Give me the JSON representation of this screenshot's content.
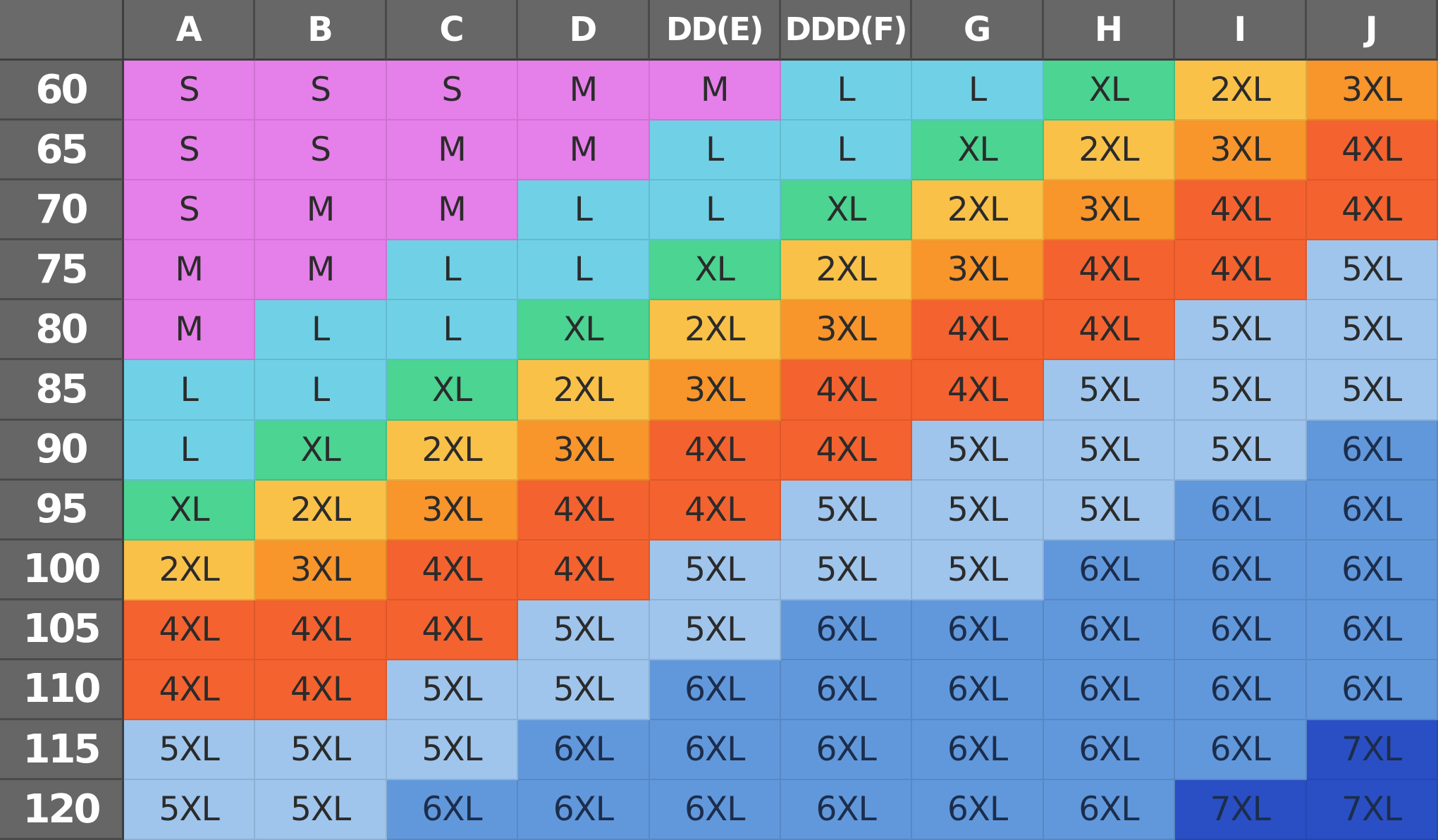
{
  "table": {
    "corner": "",
    "columns": [
      "A",
      "B",
      "C",
      "D",
      "DD(E)",
      "DDD(F)",
      "G",
      "H",
      "I",
      "J"
    ],
    "rows": [
      {
        "band": "60",
        "sizes": [
          "S",
          "S",
          "S",
          "M",
          "M",
          "L",
          "L",
          "XL",
          "2XL",
          "3XL"
        ]
      },
      {
        "band": "65",
        "sizes": [
          "S",
          "S",
          "M",
          "M",
          "L",
          "L",
          "XL",
          "2XL",
          "3XL",
          "4XL"
        ]
      },
      {
        "band": "70",
        "sizes": [
          "S",
          "M",
          "M",
          "L",
          "L",
          "XL",
          "2XL",
          "3XL",
          "4XL",
          "4XL"
        ]
      },
      {
        "band": "75",
        "sizes": [
          "M",
          "M",
          "L",
          "L",
          "XL",
          "2XL",
          "3XL",
          "4XL",
          "4XL",
          "5XL"
        ]
      },
      {
        "band": "80",
        "sizes": [
          "M",
          "L",
          "L",
          "XL",
          "2XL",
          "3XL",
          "4XL",
          "4XL",
          "5XL",
          "5XL"
        ]
      },
      {
        "band": "85",
        "sizes": [
          "L",
          "L",
          "XL",
          "2XL",
          "3XL",
          "4XL",
          "4XL",
          "5XL",
          "5XL",
          "5XL"
        ]
      },
      {
        "band": "90",
        "sizes": [
          "L",
          "XL",
          "2XL",
          "3XL",
          "4XL",
          "4XL",
          "5XL",
          "5XL",
          "5XL",
          "6XL"
        ]
      },
      {
        "band": "95",
        "sizes": [
          "XL",
          "2XL",
          "3XL",
          "4XL",
          "4XL",
          "5XL",
          "5XL",
          "5XL",
          "6XL",
          "6XL"
        ]
      },
      {
        "band": "100",
        "sizes": [
          "2XL",
          "3XL",
          "4XL",
          "4XL",
          "5XL",
          "5XL",
          "5XL",
          "6XL",
          "6XL",
          "6XL"
        ]
      },
      {
        "band": "105",
        "sizes": [
          "4XL",
          "4XL",
          "4XL",
          "5XL",
          "5XL",
          "6XL",
          "6XL",
          "6XL",
          "6XL",
          "6XL"
        ]
      },
      {
        "band": "110",
        "sizes": [
          "4XL",
          "4XL",
          "5XL",
          "5XL",
          "6XL",
          "6XL",
          "6XL",
          "6XL",
          "6XL",
          "6XL"
        ]
      },
      {
        "band": "115",
        "sizes": [
          "5XL",
          "5XL",
          "5XL",
          "6XL",
          "6XL",
          "6XL",
          "6XL",
          "6XL",
          "6XL",
          "7XL"
        ]
      },
      {
        "band": "120",
        "sizes": [
          "5XL",
          "5XL",
          "6XL",
          "6XL",
          "6XL",
          "6XL",
          "6XL",
          "6XL",
          "7XL",
          "7XL"
        ]
      }
    ]
  },
  "size_colors": {
    "S": "#e57fe9",
    "M": "#e57fe9",
    "L": "#70d0e6",
    "XL": "#4bd492",
    "2XL": "#f9c148",
    "3XL": "#f8952b",
    "4XL": "#f4622f",
    "5XL": "#9fc5ec",
    "6XL": "#6198db",
    "7XL": "#2a4fc4"
  },
  "header_color": "#676767"
}
